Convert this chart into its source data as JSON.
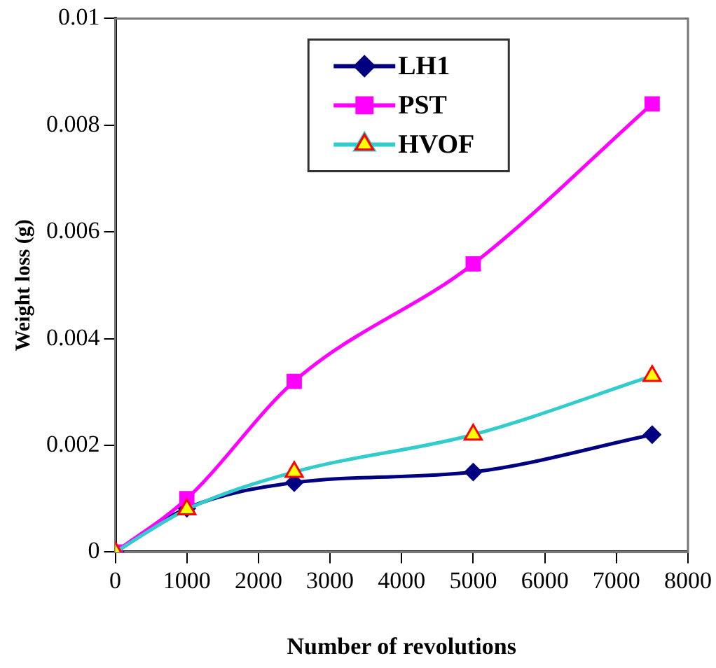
{
  "chart_data": {
    "type": "line",
    "xlabel": "Number of revolutions",
    "ylabel": "Weight loss (g)",
    "x": [
      0,
      1000,
      2500,
      5000,
      7500
    ],
    "series": [
      {
        "name": "LH1",
        "color": "#000080",
        "marker": "diamond",
        "values": [
          0,
          0.00082,
          0.0013,
          0.0015,
          0.0022
        ]
      },
      {
        "name": "PST",
        "color": "#ff00ff",
        "marker": "square",
        "values": [
          0,
          0.001,
          0.0032,
          0.0054,
          0.0084
        ]
      },
      {
        "name": "HVOF",
        "color": "#33cccc",
        "marker": "triangle",
        "values": [
          0,
          0.0008,
          0.0015,
          0.0022,
          0.0033
        ]
      }
    ],
    "xlim": [
      0,
      8000
    ],
    "xticks": [
      0,
      1000,
      2000,
      3000,
      4000,
      5000,
      6000,
      7000,
      8000
    ],
    "ylim": [
      0,
      0.01
    ],
    "yticks": [
      0,
      0.002,
      0.004,
      0.006,
      0.008,
      0.01
    ],
    "grid": false,
    "legend": "top"
  }
}
